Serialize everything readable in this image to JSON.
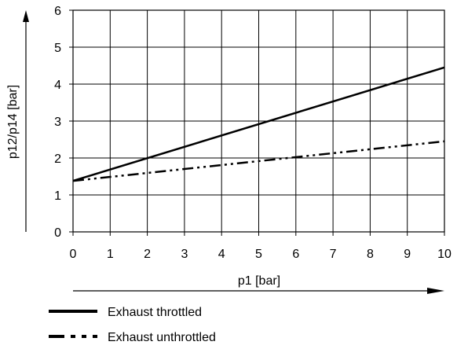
{
  "chart_data": {
    "type": "line",
    "title": "",
    "xlabel": "p1 [bar]",
    "ylabel": "p12/p14 [bar]",
    "xlim": [
      0,
      10
    ],
    "ylim": [
      0,
      6
    ],
    "xticks": [
      "0",
      "1",
      "2",
      "3",
      "4",
      "5",
      "6",
      "7",
      "8",
      "9",
      "10"
    ],
    "yticks": [
      "0",
      "1",
      "2",
      "3",
      "4",
      "5",
      "6"
    ],
    "grid": true,
    "legend_position": "bottom-left",
    "series": [
      {
        "name": "Exhaust throttled",
        "style": "solid",
        "color": "#000000",
        "x": [
          0,
          10
        ],
        "y": [
          1.38,
          4.45
        ]
      },
      {
        "name": "Exhaust unthrottled",
        "style": "dash-dot-dot",
        "color": "#000000",
        "x": [
          0,
          10
        ],
        "y": [
          1.38,
          2.45
        ]
      }
    ]
  }
}
